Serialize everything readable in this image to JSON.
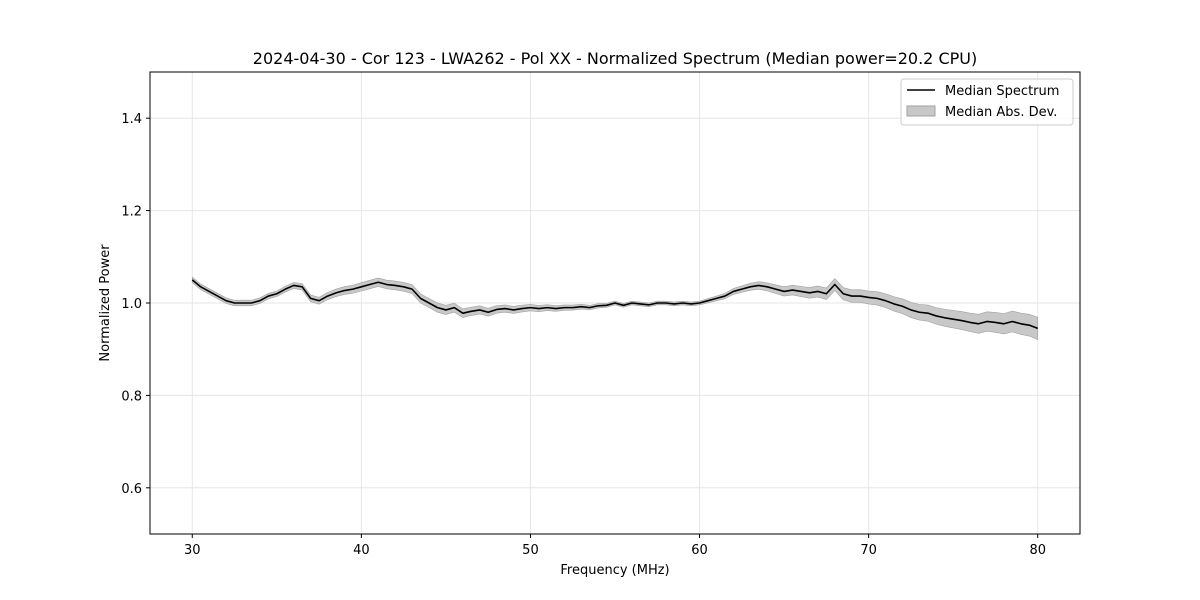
{
  "chart_data": {
    "type": "line",
    "title": "2024-04-30 - Cor 123 - LWA262 - Pol XX - Normalized Spectrum (Median power=20.2 CPU)",
    "xlabel": "Frequency (MHz)",
    "ylabel": "Normalized Power",
    "xlim": [
      27.5,
      82.5
    ],
    "ylim": [
      0.5,
      1.5
    ],
    "xticks": [
      30,
      40,
      50,
      60,
      70,
      80
    ],
    "yticks": [
      0.6,
      0.8,
      1.0,
      1.2,
      1.4
    ],
    "xtick_labels": [
      "30",
      "40",
      "50",
      "60",
      "70",
      "80"
    ],
    "ytick_labels": [
      "0.6",
      "0.8",
      "1.0",
      "1.2",
      "1.4"
    ],
    "grid": true,
    "legend_position": "top-right",
    "colors": {
      "line": "#000000",
      "band": "#c8c8c8",
      "band_edge": "#a0a0a0",
      "grid": "#e6e6e6"
    },
    "series": [
      {
        "name": "Median Spectrum",
        "kind": "line",
        "x": [
          30,
          30.5,
          31,
          31.5,
          32,
          32.5,
          33,
          33.5,
          34,
          34.5,
          35,
          35.5,
          36,
          36.5,
          37,
          37.5,
          38,
          38.5,
          39,
          39.5,
          40,
          40.5,
          41,
          41.5,
          42,
          42.5,
          43,
          43.5,
          44,
          44.5,
          45,
          45.5,
          46,
          46.5,
          47,
          47.5,
          48,
          48.5,
          49,
          49.5,
          50,
          50.5,
          51,
          51.5,
          52,
          52.5,
          53,
          53.5,
          54,
          54.5,
          55,
          55.5,
          56,
          56.5,
          57,
          57.5,
          58,
          58.5,
          59,
          59.5,
          60,
          60.5,
          61,
          61.5,
          62,
          62.5,
          63,
          63.5,
          64,
          64.5,
          65,
          65.5,
          66,
          66.5,
          67,
          67.5,
          68,
          68.5,
          69,
          69.5,
          70,
          70.5,
          71,
          71.5,
          72,
          72.5,
          73,
          73.5,
          74,
          74.5,
          75,
          75.5,
          76,
          76.5,
          77,
          77.5,
          78,
          78.5,
          79,
          79.5,
          80
        ],
        "y": [
          1.05,
          1.035,
          1.025,
          1.015,
          1.005,
          1.0,
          1.0,
          1.0,
          1.005,
          1.015,
          1.02,
          1.03,
          1.038,
          1.035,
          1.01,
          1.005,
          1.015,
          1.022,
          1.027,
          1.03,
          1.035,
          1.04,
          1.045,
          1.04,
          1.038,
          1.035,
          1.03,
          1.01,
          1.0,
          0.99,
          0.985,
          0.99,
          0.978,
          0.982,
          0.985,
          0.98,
          0.986,
          0.988,
          0.985,
          0.988,
          0.99,
          0.988,
          0.99,
          0.988,
          0.99,
          0.99,
          0.992,
          0.99,
          0.994,
          0.995,
          1.0,
          0.995,
          1.0,
          0.998,
          0.996,
          1.0,
          1.0,
          0.998,
          1.0,
          0.998,
          1.0,
          1.005,
          1.01,
          1.015,
          1.025,
          1.03,
          1.035,
          1.038,
          1.035,
          1.03,
          1.025,
          1.028,
          1.025,
          1.022,
          1.025,
          1.02,
          1.04,
          1.02,
          1.015,
          1.015,
          1.012,
          1.01,
          1.005,
          0.998,
          0.993,
          0.985,
          0.98,
          0.978,
          0.972,
          0.968,
          0.965,
          0.962,
          0.958,
          0.955,
          0.96,
          0.958,
          0.955,
          0.96,
          0.955,
          0.952,
          0.945
        ]
      },
      {
        "name": "Median Abs. Dev.",
        "kind": "band",
        "x": [
          30,
          35,
          40,
          45,
          50,
          55,
          60,
          65,
          68,
          70,
          72,
          74,
          76,
          78,
          80
        ],
        "half_width": [
          0.006,
          0.006,
          0.009,
          0.01,
          0.007,
          0.004,
          0.004,
          0.01,
          0.013,
          0.014,
          0.016,
          0.018,
          0.02,
          0.022,
          0.024
        ]
      }
    ]
  }
}
